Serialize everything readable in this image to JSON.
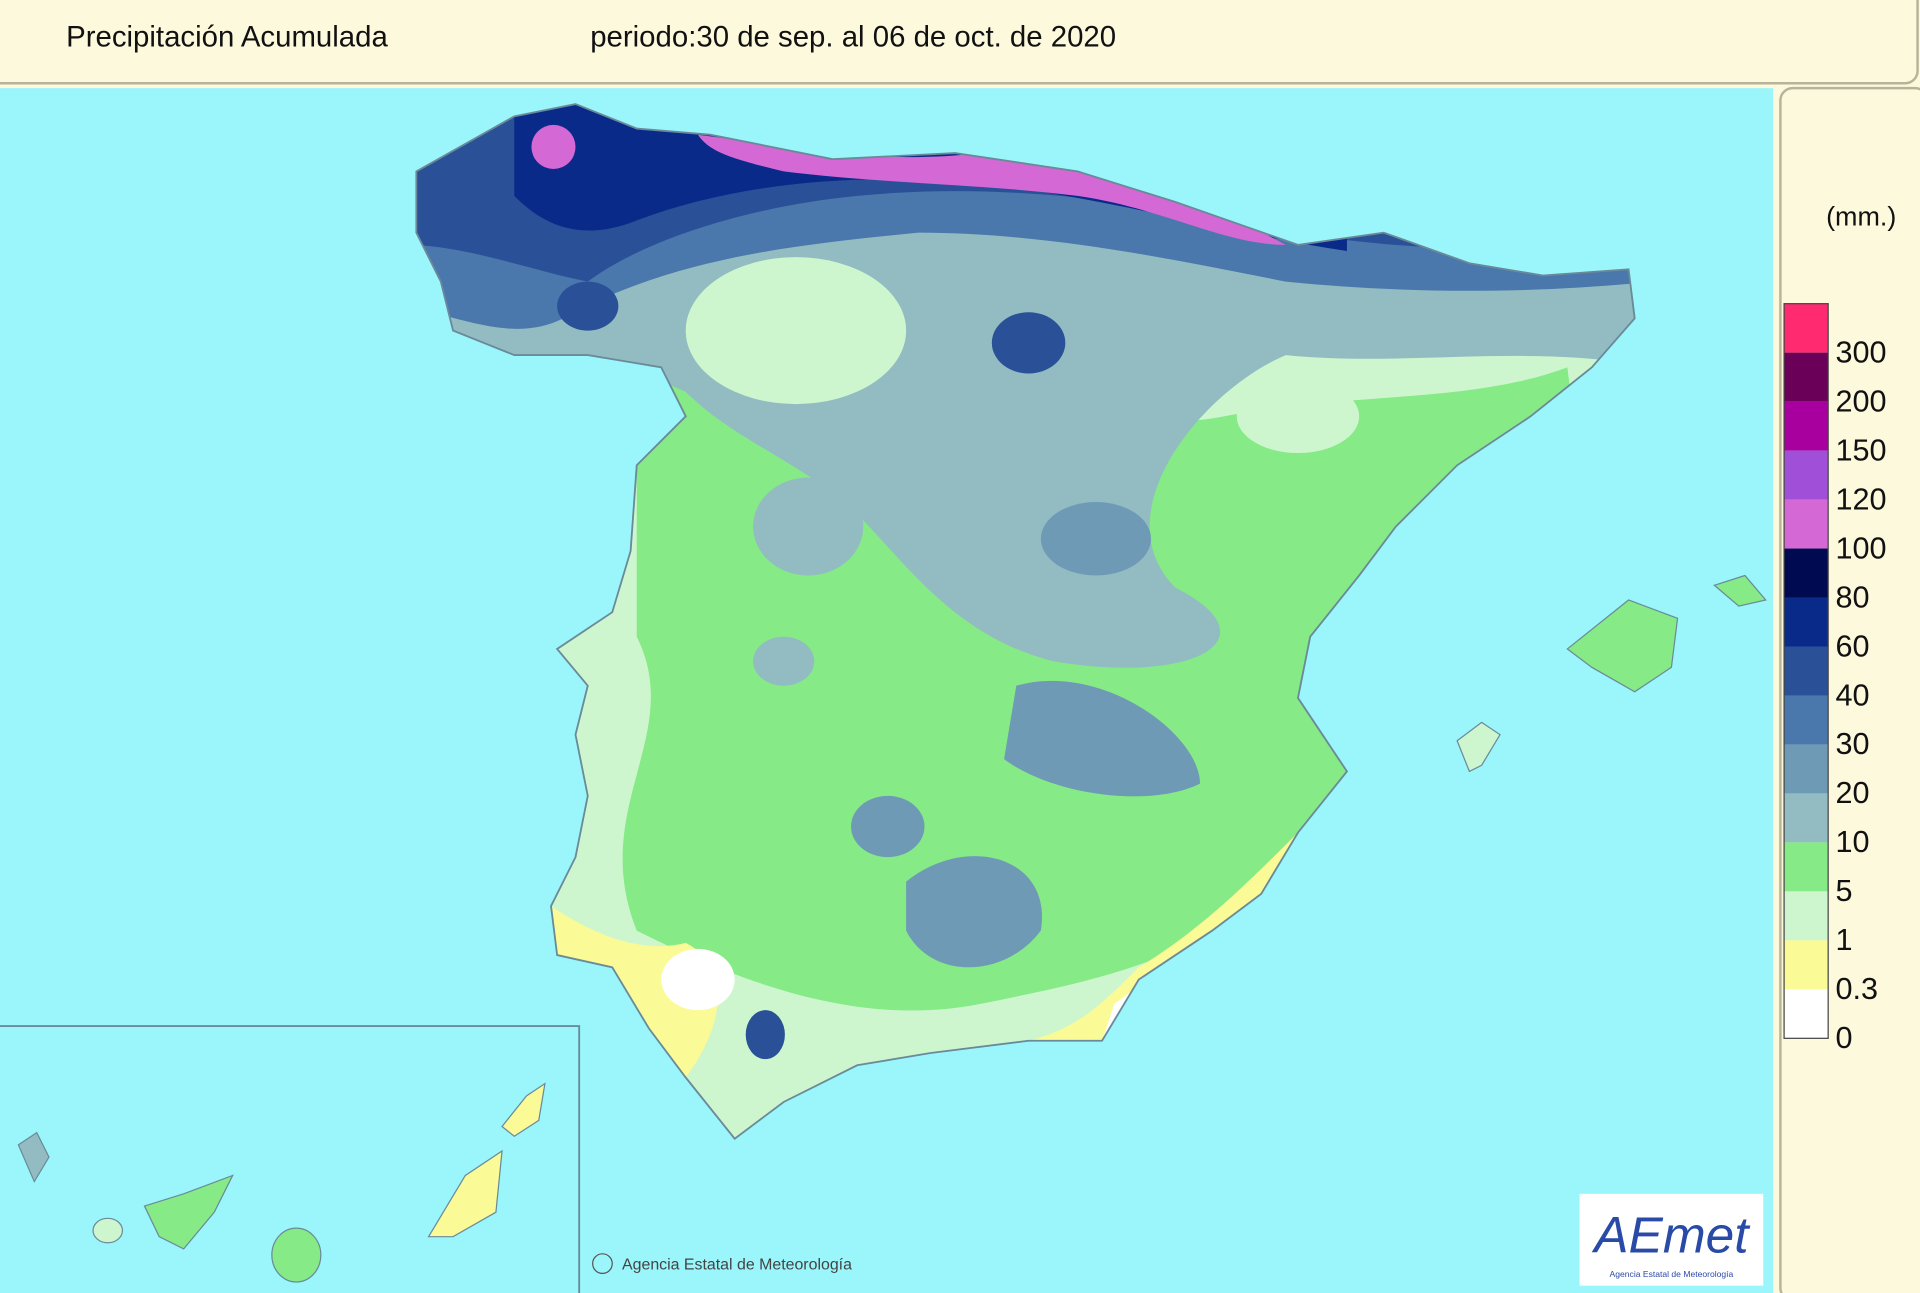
{
  "header": {
    "title": "Precipitación Acumulada",
    "period": "periodo:30 de sep. al 06 de oct. de 2020"
  },
  "legend": {
    "unit": "(mm.)",
    "levels": [
      {
        "value": 300,
        "color": "#ff2a70"
      },
      {
        "value": 200,
        "color": "#6a0058"
      },
      {
        "value": 150,
        "color": "#a8009e"
      },
      {
        "value": 120,
        "color": "#a050d8"
      },
      {
        "value": 100,
        "color": "#d468d4"
      },
      {
        "value": 80,
        "color": "#000a50"
      },
      {
        "value": 60,
        "color": "#0a2a8a"
      },
      {
        "value": 40,
        "color": "#2a5098"
      },
      {
        "value": 30,
        "color": "#4a78ac"
      },
      {
        "value": 20,
        "color": "#6e9ab6"
      },
      {
        "value": 10,
        "color": "#92bcc2"
      },
      {
        "value": 5,
        "color": "#86ea86"
      },
      {
        "value": 1,
        "color": "#cef6ce"
      },
      {
        "value": 0.3,
        "color": "#fafa96"
      },
      {
        "value": 0,
        "color": "#ffffff"
      }
    ]
  },
  "footer": {
    "copyright": "Agencia Estatal de Meteorología",
    "logo": "AEmet",
    "logo_subtitle": "Agencia Estatal de Meteorología"
  }
}
